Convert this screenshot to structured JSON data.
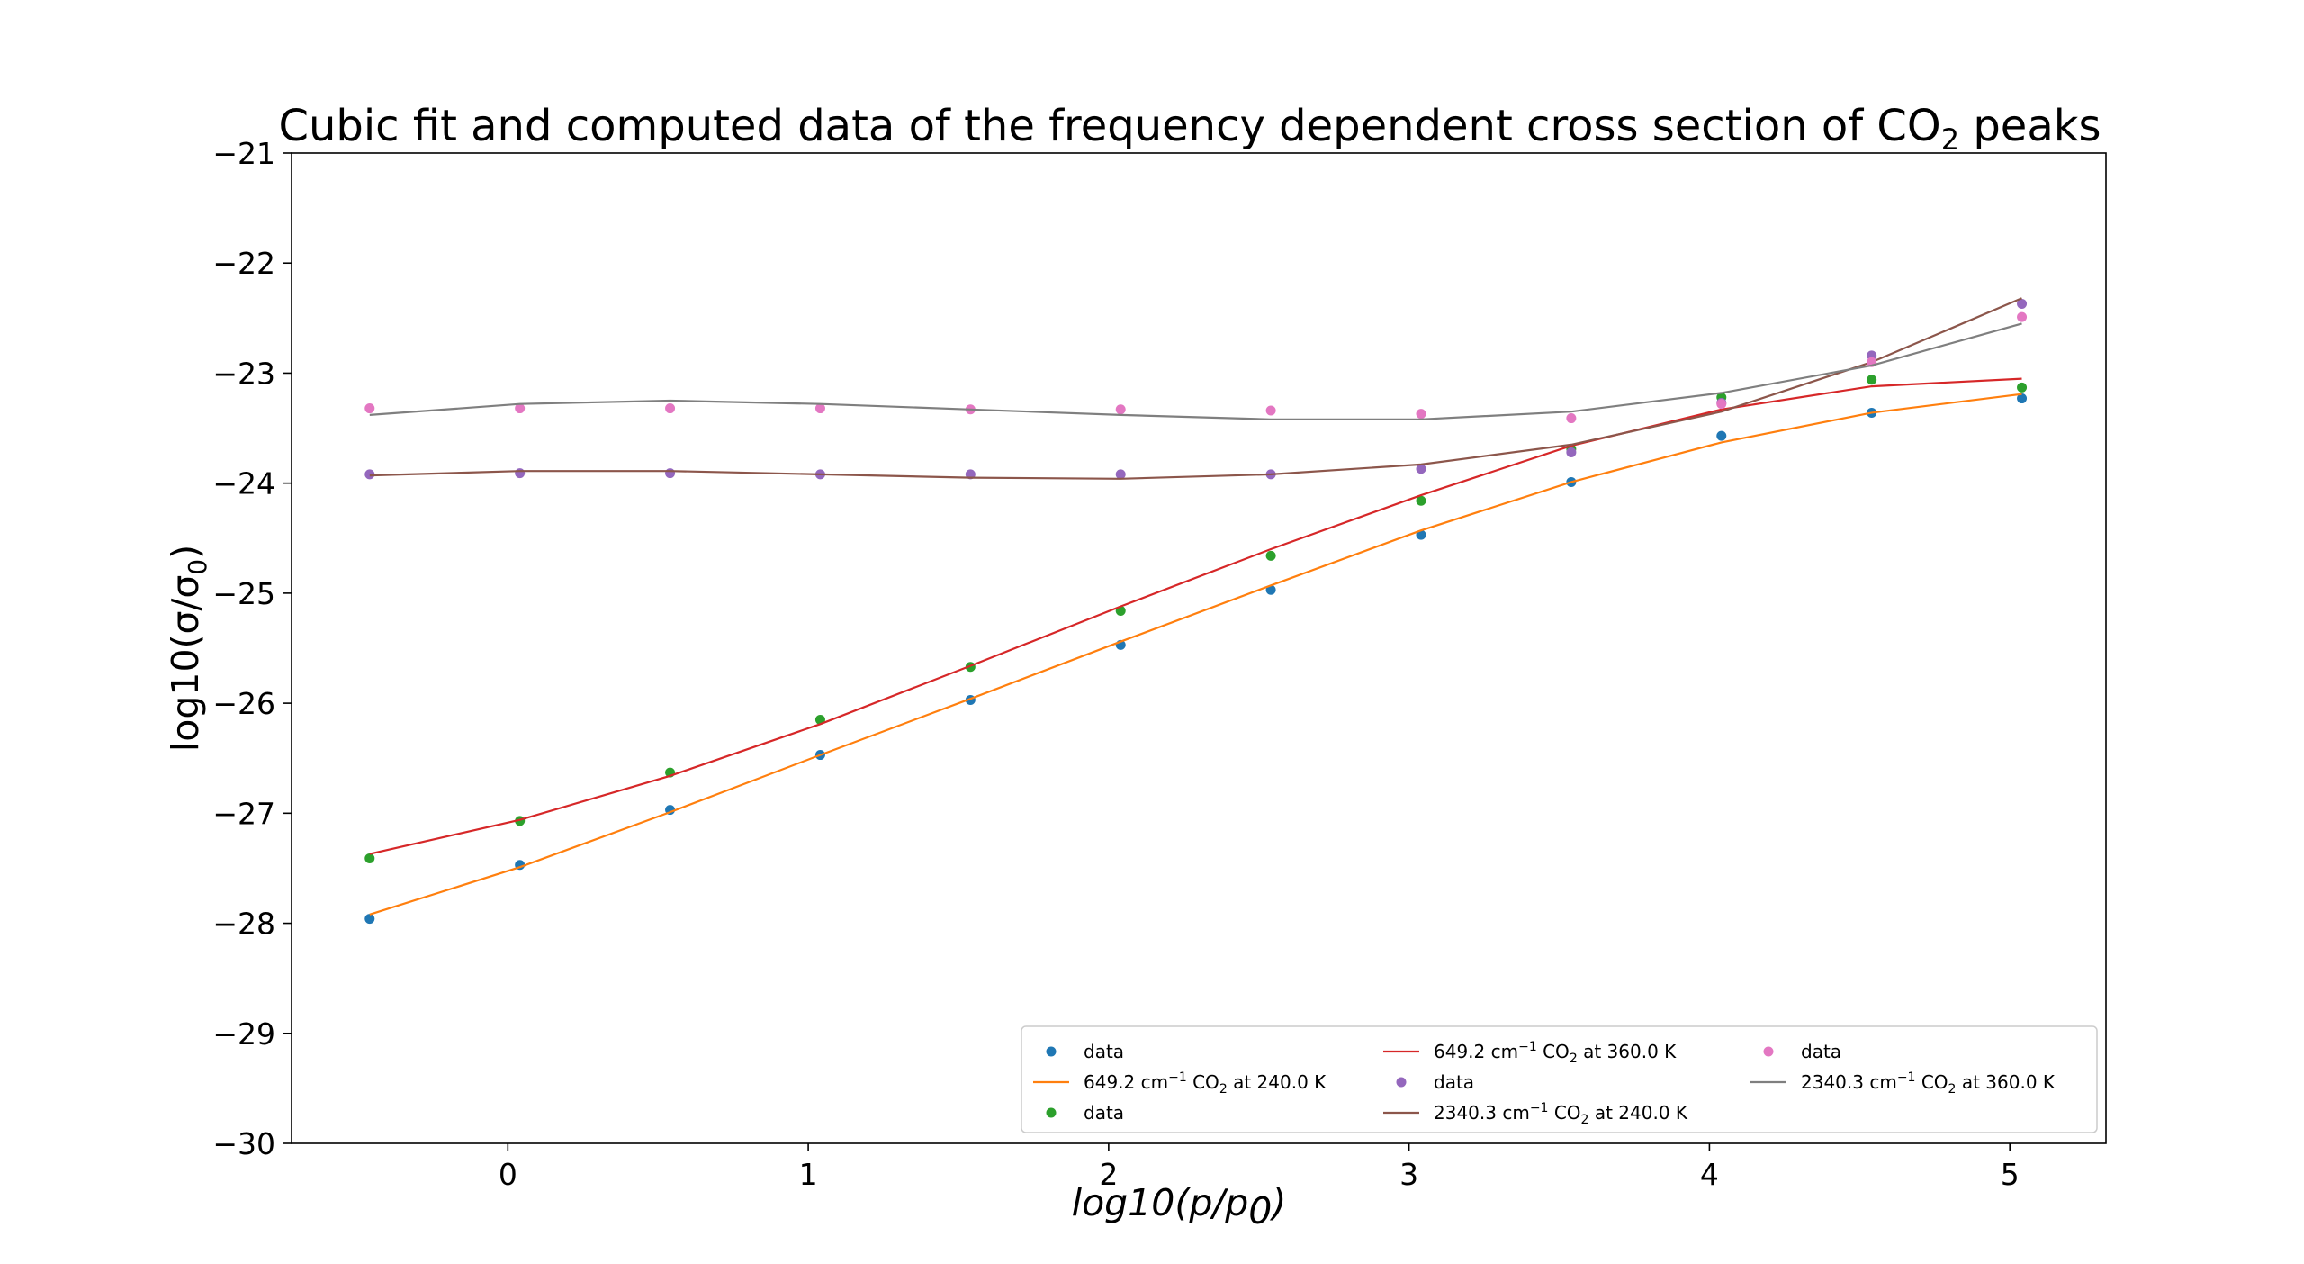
{
  "chart_data": {
    "type": "line",
    "title": "Cubic fit and computed data of the frequency dependent cross section of CO2 peaks",
    "title_main": "Cubic fit and computed data of the frequency dependent cross section of CO",
    "title_sub": "2",
    "title_tail": " peaks",
    "xlabel": "log10(p/p0)",
    "xlabel_parts": {
      "pre": "log10(",
      "p": "p",
      "slash": "/",
      "p0": "p",
      "sub": "0",
      "post": ")"
    },
    "ylabel": "log10(σ/σ0)",
    "ylabel_parts": {
      "pre": "log10(σ/σ",
      "sub": "0",
      "post": ")"
    },
    "xlim": [
      -0.72,
      5.32
    ],
    "ylim": [
      -30,
      -21
    ],
    "xticks": [
      0,
      1,
      2,
      3,
      4,
      5
    ],
    "xtick_labels": [
      "0",
      "1",
      "2",
      "3",
      "4",
      "5"
    ],
    "yticks": [
      -21,
      -22,
      -23,
      -24,
      -25,
      -26,
      -27,
      -28,
      -29,
      -30
    ],
    "ytick_labels": [
      "−21",
      "−22",
      "−23",
      "−24",
      "−25",
      "−26",
      "−27",
      "−28",
      "−29",
      "−30"
    ],
    "x": [
      -0.46,
      0.04,
      0.54,
      1.04,
      1.54,
      2.04,
      2.54,
      3.04,
      3.54,
      4.04,
      4.54,
      5.04
    ],
    "grid": false,
    "legend_position": "lower-right",
    "series": [
      {
        "kind": "scatter",
        "name": "data",
        "color": "#1f77b4",
        "values": [
          -27.96,
          -27.47,
          -26.97,
          -26.47,
          -25.97,
          -25.47,
          -24.97,
          -24.47,
          -23.99,
          -23.57,
          -23.36,
          -23.23
        ]
      },
      {
        "kind": "line",
        "name": "649.2 cm−1 CO2 at 240.0 K",
        "color": "#ff7f0e",
        "label_parts": [
          "649.2 cm",
          "−1",
          " CO",
          "2",
          " at 240.0 K"
        ],
        "values": [
          -27.92,
          -27.49,
          -26.99,
          -26.47,
          -25.96,
          -25.44,
          -24.93,
          -24.43,
          -23.99,
          -23.63,
          -23.36,
          -23.19
        ]
      },
      {
        "kind": "scatter",
        "name": "data",
        "color": "#2ca02c",
        "values": [
          -27.41,
          -27.07,
          -26.63,
          -26.15,
          -25.67,
          -25.16,
          -24.66,
          -24.16,
          -23.69,
          -23.22,
          -23.06,
          -23.13
        ]
      },
      {
        "kind": "line",
        "name": "649.2 cm−1 CO2 at 360.0 K",
        "color": "#d62728",
        "label_parts": [
          "649.2 cm",
          "−1",
          " CO",
          "2",
          " at 360.0 K"
        ],
        "values": [
          -27.37,
          -27.06,
          -26.66,
          -26.19,
          -25.66,
          -25.12,
          -24.6,
          -24.11,
          -23.66,
          -23.33,
          -23.12,
          -23.05
        ]
      },
      {
        "kind": "scatter",
        "name": "data",
        "color": "#9467bd",
        "values": [
          -23.92,
          -23.91,
          -23.91,
          -23.92,
          -23.92,
          -23.92,
          -23.92,
          -23.87,
          -23.72,
          -23.27,
          -22.84,
          -22.37
        ]
      },
      {
        "kind": "line",
        "name": "2340.3 cm−1 CO2 at 240.0 K",
        "color": "#8c564b",
        "label_parts": [
          "2340.3 cm",
          "−1",
          " CO",
          "2",
          " at 240.0 K"
        ],
        "values": [
          -23.93,
          -23.89,
          -23.89,
          -23.92,
          -23.95,
          -23.96,
          -23.92,
          -23.83,
          -23.65,
          -23.35,
          -22.9,
          -22.32
        ]
      },
      {
        "kind": "scatter",
        "name": "data",
        "color": "#e377c2",
        "values": [
          -23.32,
          -23.32,
          -23.32,
          -23.32,
          -23.33,
          -23.33,
          -23.34,
          -23.37,
          -23.41,
          -23.28,
          -22.9,
          -22.49
        ]
      },
      {
        "kind": "line",
        "name": "2340.3 cm−1 CO2 at 360.0 K",
        "color": "#7f7f7f",
        "label_parts": [
          "2340.3 cm",
          "−1",
          " CO",
          "2",
          " at 360.0 K"
        ],
        "values": [
          -23.38,
          -23.28,
          -23.25,
          -23.28,
          -23.33,
          -23.38,
          -23.42,
          -23.42,
          -23.35,
          -23.18,
          -22.93,
          -22.55
        ]
      }
    ]
  }
}
